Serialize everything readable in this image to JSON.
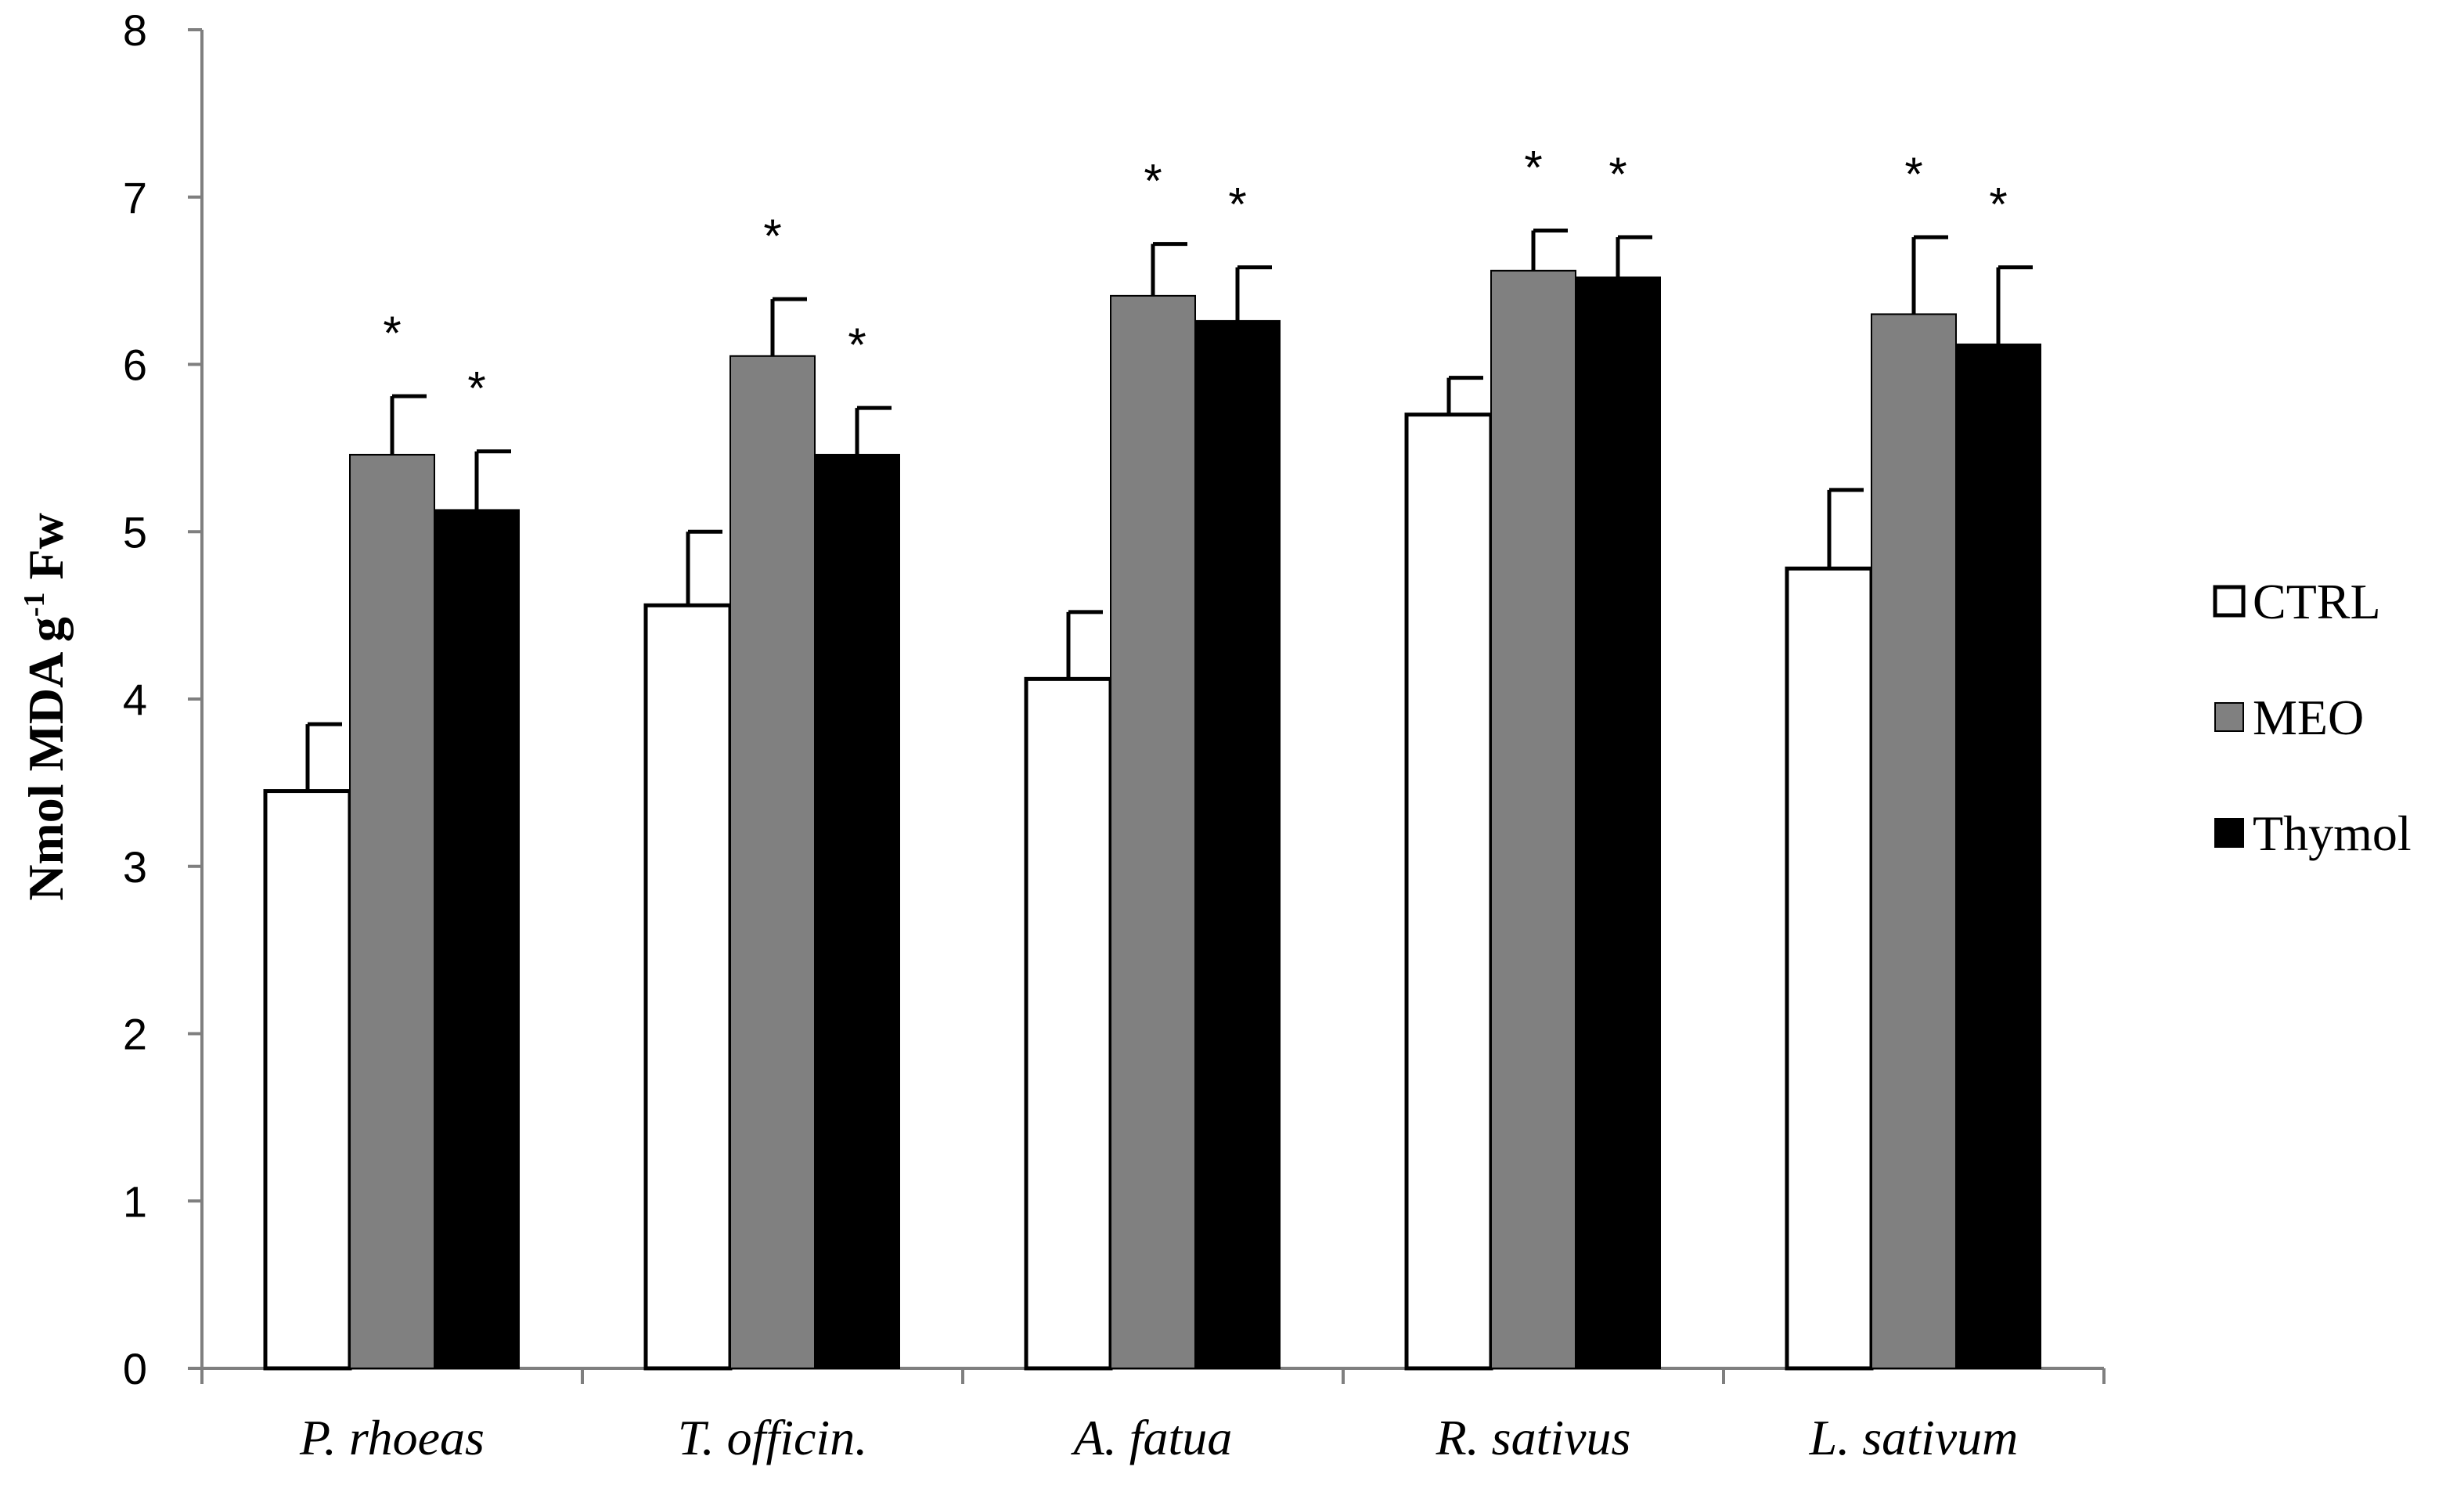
{
  "chart_data": {
    "type": "bar",
    "categories": [
      "P. rhoeas",
      "T. officin.",
      "A. fatua",
      "R. sativus",
      "L. sativum"
    ],
    "series": [
      {
        "name": "CTRL",
        "color": "#ffffff",
        "values": [
          3.45,
          4.56,
          4.12,
          5.7,
          4.78
        ],
        "errors": [
          0.4,
          0.44,
          0.4,
          0.22,
          0.47
        ],
        "significant": [
          false,
          false,
          false,
          false,
          false
        ]
      },
      {
        "name": "MEO",
        "color": "#808080",
        "values": [
          5.46,
          6.05,
          6.41,
          6.56,
          6.3
        ],
        "errors": [
          0.35,
          0.34,
          0.31,
          0.24,
          0.46
        ],
        "significant": [
          true,
          true,
          true,
          true,
          true
        ]
      },
      {
        "name": "Thymol",
        "color": "#000000",
        "values": [
          5.13,
          5.46,
          6.26,
          6.52,
          6.12
        ],
        "errors": [
          0.35,
          0.28,
          0.32,
          0.24,
          0.46
        ],
        "significant": [
          true,
          true,
          true,
          true,
          true
        ]
      }
    ],
    "ylabel": {
      "main": "Nmol MDA g",
      "sup": "-1",
      "tail": " Fw"
    },
    "xlabel": "",
    "ylim": [
      0,
      8
    ],
    "yticks": [
      0,
      1,
      2,
      3,
      4,
      5,
      6,
      7,
      8
    ],
    "significance_marker": "*",
    "grid": false,
    "legend_position": "right"
  }
}
